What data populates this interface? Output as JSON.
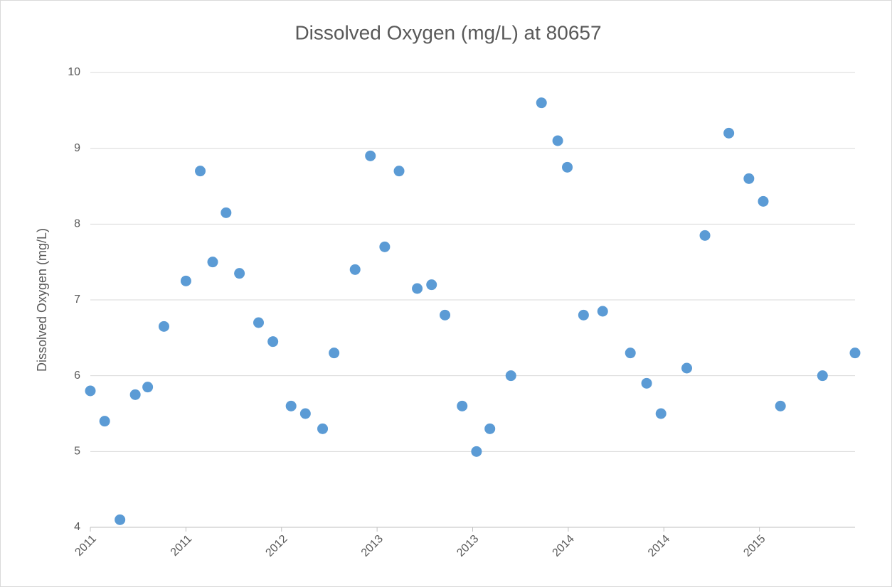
{
  "chart_data": {
    "type": "scatter",
    "title": "Dissolved Oxygen (mg/L) at 80657",
    "y_label": "Dissolved Oxygen (mg/L)",
    "color": "#5b9bd5",
    "series": [
      {
        "name": "Dissolved Oxygen (mg/L)",
        "color": "#5b9bd5",
        "x": [
          0,
          0.15,
          0.31,
          0.47,
          0.6,
          0.77,
          1.0,
          1.15,
          1.28,
          1.42,
          1.56,
          1.76,
          1.91,
          2.1,
          2.25,
          2.43,
          2.55,
          2.77,
          2.93,
          3.08,
          3.23,
          3.42,
          3.57,
          3.71,
          3.89,
          4.04,
          4.18,
          4.4,
          4.72,
          4.89,
          4.99,
          5.16,
          5.36,
          5.65,
          5.82,
          5.97,
          6.24,
          6.43,
          6.68,
          6.89,
          7.04,
          7.22,
          7.66,
          8.0
        ],
        "values": [
          5.8,
          5.4,
          4.1,
          5.75,
          5.85,
          6.65,
          7.25,
          8.7,
          7.5,
          8.15,
          7.35,
          6.7,
          6.45,
          5.6,
          5.5,
          5.3,
          6.3,
          7.4,
          8.9,
          7.7,
          8.7,
          7.15,
          7.2,
          6.8,
          5.6,
          5.0,
          5.3,
          6.0,
          9.6,
          9.1,
          8.75,
          6.8,
          6.85,
          6.3,
          5.9,
          5.5,
          6.1,
          7.85,
          9.2,
          8.6,
          8.3,
          5.6,
          6.0,
          6.3
        ]
      }
    ],
    "xlim": [
      0,
      8
    ],
    "xticks": [
      {
        "value": 0,
        "label": "2011"
      },
      {
        "value": 1,
        "label": "2011"
      },
      {
        "value": 2,
        "label": "2012"
      },
      {
        "value": 3,
        "label": "2013"
      },
      {
        "value": 4,
        "label": "2013"
      },
      {
        "value": 5,
        "label": "2014"
      },
      {
        "value": 6,
        "label": "2014"
      },
      {
        "value": 7,
        "label": "2015"
      }
    ],
    "ylim": [
      4,
      10
    ],
    "yticks": [
      4,
      5,
      6,
      7,
      8,
      9,
      10
    ],
    "grid": true
  }
}
